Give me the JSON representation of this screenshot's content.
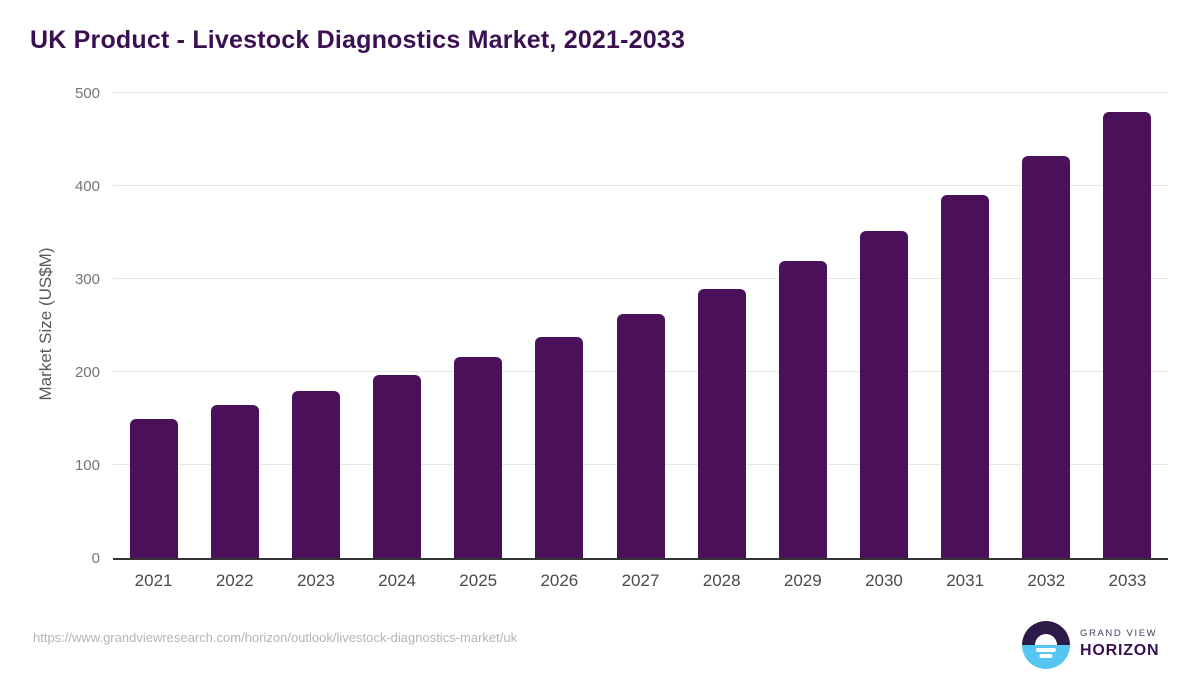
{
  "chart_data": {
    "type": "bar",
    "title": "UK Product - Livestock Diagnostics Market, 2021-2033",
    "categories": [
      "2021",
      "2022",
      "2023",
      "2024",
      "2025",
      "2026",
      "2027",
      "2028",
      "2029",
      "2030",
      "2031",
      "2032",
      "2033"
    ],
    "values": [
      150,
      165,
      180,
      197,
      216,
      238,
      262,
      289,
      319,
      352,
      390,
      432,
      480
    ],
    "xlabel": "",
    "ylabel": "Market Size (US$M)",
    "ylim": [
      0,
      500
    ],
    "yticks": [
      0,
      100,
      200,
      300,
      400,
      500
    ],
    "grid": true,
    "legend_position": "none",
    "bar_color": "#4a115a",
    "title_color": "#3b1053",
    "gridline_color": "#e7e7e7",
    "axis_line_color": "#333333"
  },
  "footer": {
    "source_url": "https://www.grandviewresearch.com/horizon/outlook/livestock-diagnostics-market/uk",
    "logo": {
      "line1": "GRAND VIEW",
      "line2": "HORIZON",
      "mark_top_color": "#2d1b47",
      "mark_bottom_color": "#56c5f2"
    }
  }
}
